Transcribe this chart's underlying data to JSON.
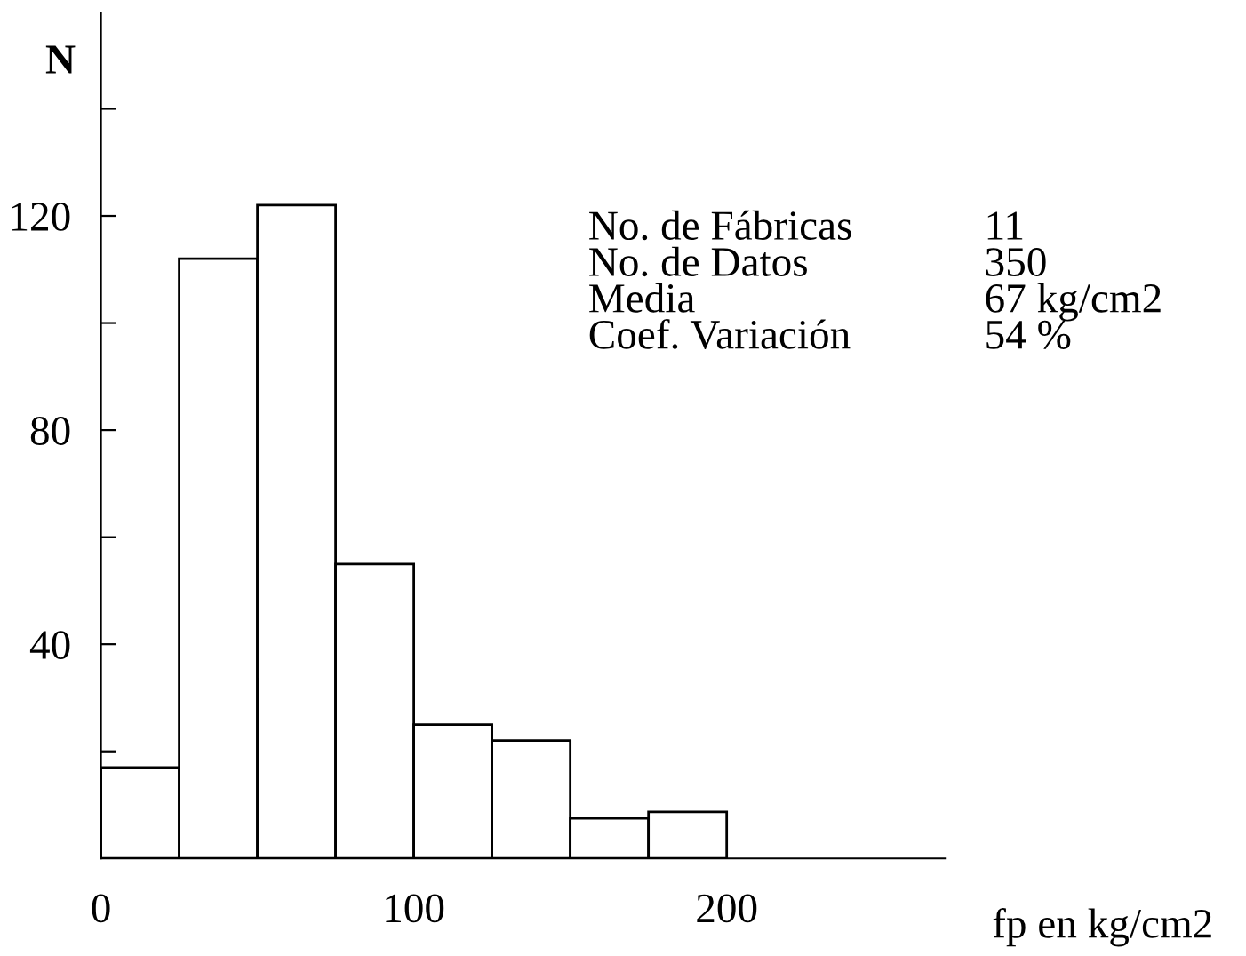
{
  "chart_data": {
    "type": "histogram",
    "xlabel": "fp en kg/cm2",
    "ylabel": "N",
    "bins": [
      0,
      25,
      50,
      75,
      100,
      125,
      150,
      175,
      200
    ],
    "values": [
      17,
      112,
      122,
      55,
      25,
      22,
      7.5,
      8.7
    ],
    "color": "#ffffff",
    "xlim": [
      0,
      270
    ],
    "xticks": [
      0,
      100,
      200
    ],
    "ylim": [
      0,
      158
    ],
    "yticks": [
      {
        "value": 20,
        "label": null
      },
      40,
      {
        "value": 60,
        "label": null
      },
      80,
      {
        "value": 100,
        "label": null
      },
      120,
      {
        "value": 140,
        "label": null
      }
    ],
    "grid": false,
    "legend": false,
    "annotations": [
      "No. de Fábricas",
      "11",
      "No. de Datos",
      "350",
      "Media",
      "67 kg/cm2",
      "Coef. Variación",
      "54 %"
    ]
  }
}
